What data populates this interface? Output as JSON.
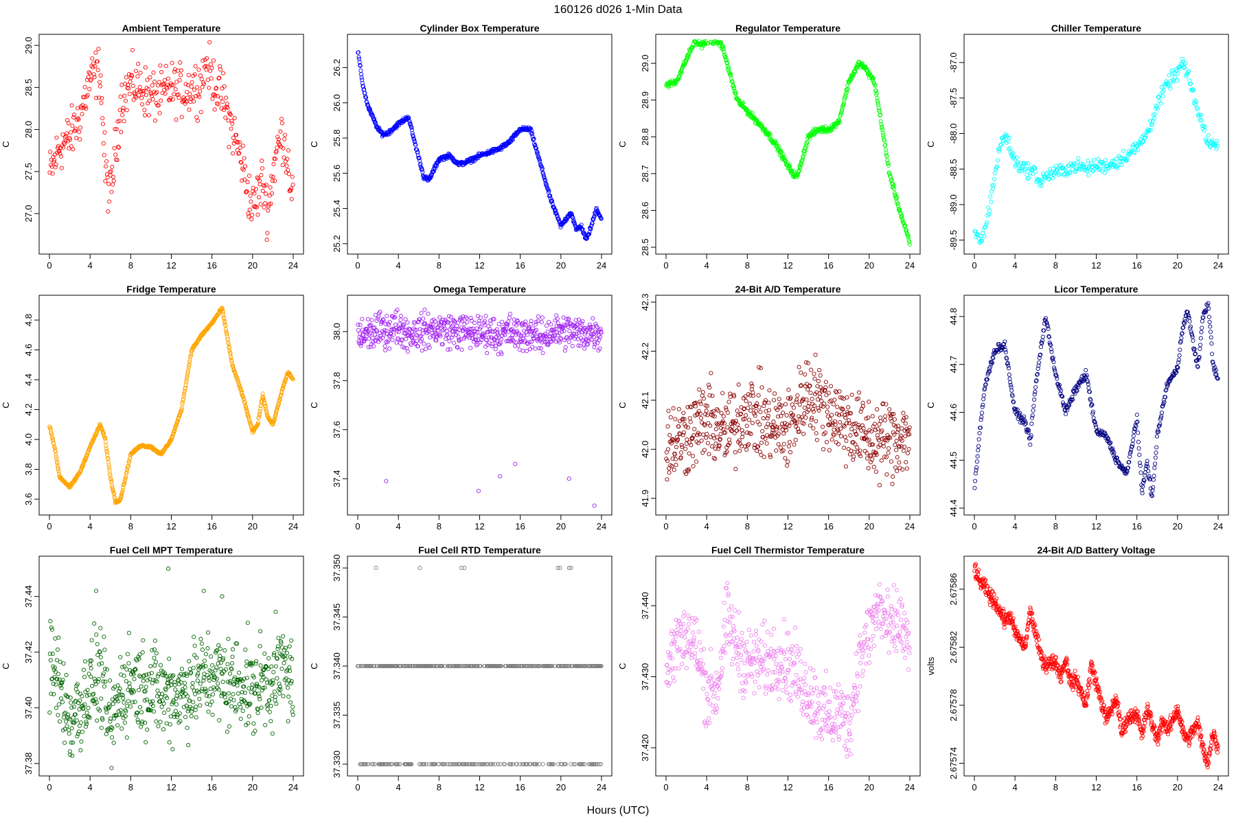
{
  "page_title": "160126   d026   1-Min Data",
  "x_axis_label": "Hours (UTC)",
  "chart_data": [
    {
      "type": "scatter",
      "title": "Ambient Temperature",
      "ylabel": "C",
      "color": "#ff0000",
      "xlim": [
        0,
        24
      ],
      "ylim": [
        26.6,
        29.05
      ],
      "xticks": [
        0,
        4,
        8,
        12,
        16,
        20,
        24
      ],
      "yticks": [
        27.0,
        27.5,
        28.0,
        28.5,
        29.0
      ],
      "ytick_labels": [
        "27.0",
        "27.5",
        "28.0",
        "28.5",
        "29.0"
      ],
      "x": [
        0,
        1,
        2,
        3,
        4,
        5,
        5.5,
        6,
        7,
        8,
        9,
        10,
        11,
        12,
        13,
        14,
        15,
        15.5,
        16,
        17,
        18,
        19,
        19.5,
        20,
        21,
        21.5,
        22,
        22.5,
        23,
        23.5,
        24
      ],
      "y": [
        27.45,
        27.8,
        27.9,
        28.15,
        28.6,
        28.7,
        27.5,
        27.2,
        28.3,
        28.55,
        28.5,
        28.4,
        28.4,
        28.5,
        28.45,
        28.5,
        28.55,
        28.85,
        28.6,
        28.4,
        28.0,
        27.6,
        27.3,
        27.05,
        27.4,
        27.0,
        27.5,
        27.8,
        27.95,
        27.6,
        27.2
      ],
      "noise": 0.15,
      "count": 430
    },
    {
      "type": "scatter",
      "title": "Cylinder Box Temperature",
      "ylabel": "C",
      "color": "#0000ff",
      "xlim": [
        0,
        24
      ],
      "ylim": [
        25.18,
        26.35
      ],
      "xticks": [
        0,
        4,
        8,
        12,
        16,
        20,
        24
      ],
      "yticks": [
        25.2,
        25.4,
        25.6,
        25.8,
        26.0,
        26.2
      ],
      "ytick_labels": [
        "25.2",
        "25.4",
        "25.6",
        "25.8",
        "26.0",
        "26.2"
      ],
      "x": [
        0,
        0.5,
        1,
        2,
        2.5,
        3,
        4,
        5,
        5.5,
        6.5,
        7,
        8,
        9,
        10,
        11,
        12,
        13,
        14,
        15,
        16,
        17,
        18,
        19,
        20,
        21,
        21.5,
        22,
        22.5,
        23,
        23.5,
        24
      ],
      "y": [
        26.3,
        26.1,
        25.98,
        25.85,
        25.82,
        25.83,
        25.88,
        25.92,
        25.8,
        25.58,
        25.56,
        25.68,
        25.7,
        25.65,
        25.67,
        25.7,
        25.72,
        25.74,
        25.78,
        25.85,
        25.85,
        25.65,
        25.45,
        25.3,
        25.38,
        25.28,
        25.3,
        25.22,
        25.3,
        25.4,
        25.34
      ],
      "noise": 0.006,
      "count": 600
    },
    {
      "type": "scatter",
      "title": "Regulator Temperature",
      "ylabel": "C",
      "color": "#00ff00",
      "xlim": [
        0,
        24
      ],
      "ylim": [
        28.5,
        29.06
      ],
      "xticks": [
        0,
        4,
        8,
        12,
        16,
        20,
        24
      ],
      "yticks": [
        28.5,
        28.6,
        28.7,
        28.8,
        28.9,
        29.0
      ],
      "ytick_labels": [
        "28.5",
        "28.6",
        "28.7",
        "28.8",
        "28.9",
        "29.0"
      ],
      "x": [
        0,
        1,
        2,
        2.8,
        3.5,
        4,
        5,
        5.5,
        7,
        8,
        9,
        10,
        11,
        12,
        12.8,
        13,
        14,
        15,
        16,
        17,
        18,
        19,
        19.5,
        20,
        20.5,
        21,
        22,
        23,
        24
      ],
      "y": [
        28.94,
        28.95,
        29.01,
        29.06,
        29.05,
        29.06,
        29.06,
        29.05,
        28.9,
        28.87,
        28.84,
        28.81,
        28.77,
        28.72,
        28.69,
        28.7,
        28.8,
        28.82,
        28.82,
        28.84,
        28.95,
        29.0,
        28.99,
        28.97,
        28.95,
        28.87,
        28.7,
        28.6,
        28.51
      ],
      "noise": 0.004,
      "count": 600
    },
    {
      "type": "scatter",
      "title": "Chiller Temperature",
      "ylabel": "C",
      "color": "#00ffff",
      "xlim": [
        0,
        24
      ],
      "ylim": [
        -89.6,
        -86.7
      ],
      "xticks": [
        0,
        4,
        8,
        12,
        16,
        20,
        24
      ],
      "yticks": [
        -89.5,
        -89.0,
        -88.5,
        -88.0,
        -87.5,
        -87.0
      ],
      "ytick_labels": [
        "-89.5",
        "-89.0",
        "-88.5",
        "-88.0",
        "-87.5",
        "-87.0"
      ],
      "x": [
        0,
        0.5,
        1,
        1.5,
        2,
        2.5,
        3,
        3.5,
        4,
        5,
        6,
        6.5,
        7,
        8,
        9,
        10,
        11,
        12,
        13,
        14,
        15,
        16,
        17,
        18,
        19,
        20,
        20.5,
        21,
        21.5,
        22,
        23,
        24
      ],
      "y": [
        -89.4,
        -89.5,
        -89.4,
        -89.0,
        -88.6,
        -88.2,
        -88.0,
        -88.2,
        -88.4,
        -88.5,
        -88.55,
        -88.7,
        -88.6,
        -88.55,
        -88.5,
        -88.45,
        -88.5,
        -88.45,
        -88.45,
        -88.4,
        -88.3,
        -88.2,
        -88.0,
        -87.6,
        -87.3,
        -87.15,
        -87.0,
        -87.2,
        -87.4,
        -87.7,
        -88.1,
        -88.2
      ],
      "noise": 0.05,
      "count": 360
    },
    {
      "type": "scatter",
      "title": "Fridge Temperature",
      "ylabel": "C",
      "color": "#ffa500",
      "xlim": [
        0,
        24
      ],
      "ylim": [
        3.54,
        4.92
      ],
      "xticks": [
        0,
        4,
        8,
        12,
        16,
        20,
        24
      ],
      "yticks": [
        3.6,
        3.8,
        4.0,
        4.2,
        4.4,
        4.6,
        4.8
      ],
      "ytick_labels": [
        "3.6",
        "3.8",
        "4.0",
        "4.2",
        "4.4",
        "4.6",
        "4.8"
      ],
      "x": [
        0,
        0.5,
        1,
        2,
        3,
        4,
        5,
        5.5,
        6,
        6.5,
        7,
        8,
        9,
        10,
        11,
        12,
        13,
        14,
        15,
        16,
        17,
        18,
        19,
        20,
        20.5,
        21,
        21.5,
        22,
        23,
        23.5,
        24
      ],
      "y": [
        4.1,
        3.95,
        3.75,
        3.68,
        3.78,
        3.95,
        4.1,
        4.0,
        3.75,
        3.58,
        3.6,
        3.9,
        3.96,
        3.95,
        3.9,
        4.0,
        4.2,
        4.6,
        4.7,
        4.78,
        4.88,
        4.5,
        4.3,
        4.05,
        4.1,
        4.3,
        4.15,
        4.1,
        4.35,
        4.45,
        4.4
      ],
      "noise": 0.004,
      "count": 700
    },
    {
      "type": "scatter",
      "title": "Omega Temperature",
      "ylabel": "C",
      "color": "#a020f0",
      "xlim": [
        0,
        24
      ],
      "ylim": [
        37.28,
        38.12
      ],
      "xticks": [
        0,
        4,
        8,
        12,
        16,
        20,
        24
      ],
      "yticks": [
        37.4,
        37.6,
        37.8,
        38.0
      ],
      "ytick_labels": [
        "37.4",
        "37.6",
        "37.8",
        "38.0"
      ],
      "x": [
        0,
        2,
        4,
        5,
        6,
        8,
        10,
        11,
        12,
        13,
        14,
        15,
        16,
        17,
        18,
        19,
        20,
        21,
        22,
        23,
        24
      ],
      "y": [
        37.98,
        38.0,
        38.02,
        37.99,
        38.0,
        38.01,
        38.0,
        38.0,
        37.99,
        38.0,
        37.98,
        38.0,
        37.98,
        38.0,
        37.97,
        38.0,
        38.0,
        38.0,
        37.99,
        38.0,
        37.99
      ],
      "noise": 0.035,
      "count": 650,
      "outliers": [
        [
          2.8,
          37.39
        ],
        [
          11.9,
          37.35
        ],
        [
          14.0,
          37.41
        ],
        [
          15.5,
          37.46
        ],
        [
          20.8,
          37.4
        ],
        [
          23.3,
          37.29
        ]
      ]
    },
    {
      "type": "scatter",
      "title": "24-Bit A/D Temperature",
      "ylabel": "C",
      "color": "#8b0000",
      "xlim": [
        0,
        24
      ],
      "ylim": [
        41.88,
        42.3
      ],
      "xticks": [
        0,
        4,
        8,
        12,
        16,
        20,
        24
      ],
      "yticks": [
        41.9,
        42.0,
        42.1,
        42.2,
        42.3
      ],
      "ytick_labels": [
        "41.9",
        "42.0",
        "42.1",
        "42.2",
        "42.3"
      ],
      "x": [
        0,
        2,
        4,
        6,
        8,
        10,
        12,
        14,
        16,
        18,
        20,
        22,
        24
      ],
      "y": [
        42.01,
        42.03,
        42.06,
        42.03,
        42.08,
        42.05,
        42.04,
        42.12,
        42.08,
        42.05,
        42.02,
        42.02,
        42.03
      ],
      "noise": 0.04,
      "count": 650
    },
    {
      "type": "scatter",
      "title": "Licor Temperature",
      "ylabel": "C",
      "color": "#000080",
      "xlim": [
        0,
        24
      ],
      "ylim": [
        44.4,
        44.83
      ],
      "xticks": [
        0,
        4,
        8,
        12,
        16,
        20,
        24
      ],
      "yticks": [
        44.4,
        44.5,
        44.6,
        44.7,
        44.8
      ],
      "ytick_labels": [
        "44.4",
        "44.5",
        "44.6",
        "44.7",
        "44.8"
      ],
      "x": [
        0,
        0.5,
        1,
        2,
        3,
        4,
        5,
        5.5,
        6,
        7,
        8,
        9,
        10,
        11,
        12,
        13,
        14,
        15,
        16,
        16.5,
        17,
        17.5,
        18,
        19,
        20,
        20.5,
        21,
        21.5,
        22,
        22.5,
        23,
        23.5,
        24
      ],
      "y": [
        44.44,
        44.55,
        44.65,
        44.73,
        44.74,
        44.6,
        44.58,
        44.54,
        44.65,
        44.8,
        44.68,
        44.6,
        44.65,
        44.68,
        44.56,
        44.55,
        44.5,
        44.47,
        44.59,
        44.43,
        44.5,
        44.42,
        44.55,
        44.66,
        44.69,
        44.78,
        44.81,
        44.75,
        44.69,
        44.8,
        44.83,
        44.7,
        44.67
      ],
      "noise": 0.004,
      "count": 500
    },
    {
      "type": "scatter",
      "title": "Fuel Cell MPT Temperature",
      "ylabel": "C",
      "color": "#006400",
      "xlim": [
        0,
        24
      ],
      "ylim": [
        37.378,
        37.452
      ],
      "xticks": [
        0,
        4,
        8,
        12,
        16,
        20,
        24
      ],
      "yticks": [
        37.38,
        37.4,
        37.42,
        37.44
      ],
      "ytick_labels": [
        "37.38",
        "37.40",
        "37.42",
        "37.44"
      ],
      "x": [
        0,
        1,
        2,
        3,
        4,
        5,
        6,
        7,
        8,
        9,
        10,
        11,
        12,
        13,
        14,
        15,
        16,
        17,
        18,
        19,
        20,
        21,
        22,
        23,
        24
      ],
      "y": [
        37.415,
        37.408,
        37.395,
        37.4,
        37.408,
        37.412,
        37.392,
        37.405,
        37.41,
        37.408,
        37.408,
        37.405,
        37.405,
        37.405,
        37.408,
        37.41,
        37.412,
        37.41,
        37.408,
        37.41,
        37.405,
        37.41,
        37.41,
        37.415,
        37.41
      ],
      "noise": 0.008,
      "count": 700,
      "outliers": [
        [
          11.7,
          37.45
        ],
        [
          4.6,
          37.442
        ],
        [
          15.2,
          37.442
        ],
        [
          17,
          37.44
        ]
      ]
    },
    {
      "type": "scatter",
      "title": "Fuel Cell RTD Temperature",
      "ylabel": "C",
      "color": "#808080",
      "xlim": [
        0,
        24
      ],
      "ylim": [
        37.3295,
        37.3505
      ],
      "xticks": [
        0,
        4,
        8,
        12,
        16,
        20,
        24
      ],
      "yticks": [
        37.33,
        37.335,
        37.34,
        37.345,
        37.35
      ],
      "ytick_labels": [
        "37.330",
        "37.335",
        "37.340",
        "37.345",
        "37.350"
      ],
      "levels": [
        37.34,
        37.33
      ],
      "level_counts": [
        380,
        180
      ],
      "outliers": [
        [
          1.8,
          37.35
        ],
        [
          6.1,
          37.35
        ],
        [
          10.2,
          37.35
        ],
        [
          10.5,
          37.35
        ],
        [
          19.7,
          37.35
        ],
        [
          19.9,
          37.35
        ],
        [
          20.8,
          37.35
        ],
        [
          21,
          37.35
        ]
      ]
    },
    {
      "type": "scatter",
      "title": "Fuel Cell Thermistor Temperature",
      "ylabel": "C",
      "color": "#ee82ee",
      "xlim": [
        0,
        24
      ],
      "ylim": [
        37.417,
        37.446
      ],
      "xticks": [
        0,
        4,
        8,
        12,
        16,
        20,
        24
      ],
      "yticks": [
        37.42,
        37.43,
        37.44
      ],
      "ytick_labels": [
        "37.420",
        "37.430",
        "37.440"
      ],
      "x": [
        0,
        1,
        2,
        3,
        4,
        5,
        6,
        7,
        8,
        9,
        10,
        11,
        12,
        13,
        14,
        15,
        16,
        17,
        18,
        19,
        20,
        21,
        22,
        23,
        24
      ],
      "y": [
        37.43,
        37.435,
        37.436,
        37.434,
        37.428,
        37.428,
        37.438,
        37.434,
        37.432,
        37.432,
        37.432,
        37.433,
        37.432,
        37.43,
        37.428,
        37.426,
        37.424,
        37.425,
        37.423,
        37.432,
        37.436,
        37.44,
        37.436,
        37.438,
        37.433
      ],
      "noise": 0.0025,
      "count": 650
    },
    {
      "type": "scatter",
      "title": "24-Bit A/D Battery Voltage",
      "ylabel": "volts",
      "color": "#ff0000",
      "xlim": [
        0,
        24
      ],
      "ylim": [
        2.675736,
        2.675878
      ],
      "xticks": [
        0,
        4,
        8,
        12,
        16,
        20,
        24
      ],
      "yticks": [
        2.67574,
        2.67578,
        2.67582,
        2.67586
      ],
      "ytick_labels": [
        "2.67574",
        "2.67578",
        "2.67582",
        "2.67586"
      ],
      "x": [
        0,
        0.5,
        1,
        1.5,
        2,
        2.5,
        3,
        3.5,
        4,
        5,
        5.5,
        6,
        6.5,
        7,
        8,
        8.5,
        9,
        9.5,
        10,
        11,
        11.5,
        12,
        13,
        14,
        14.5,
        15,
        16,
        16.5,
        17,
        18,
        18.5,
        19,
        20,
        20.5,
        21,
        22,
        22.5,
        23,
        23.5,
        24
      ],
      "y": [
        2.675875,
        2.675865,
        2.675862,
        2.675855,
        2.675852,
        2.675845,
        2.675838,
        2.675842,
        2.67583,
        2.67582,
        2.675845,
        2.67583,
        2.675815,
        2.675808,
        2.67581,
        2.6758,
        2.675812,
        2.675795,
        2.675798,
        2.67578,
        2.675808,
        2.675795,
        2.67577,
        2.675785,
        2.67576,
        2.67577,
        2.675775,
        2.675758,
        2.675778,
        2.675756,
        2.67577,
        2.675762,
        2.675778,
        2.675762,
        2.675756,
        2.675768,
        2.67575,
        2.67574,
        2.675762,
        2.67575
      ],
      "noise": 2.5e-06,
      "count": 800
    }
  ]
}
